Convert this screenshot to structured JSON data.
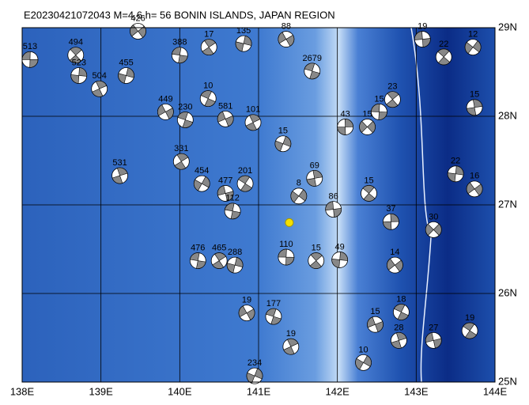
{
  "title": "E20230421072043 M=4.6 h= 56 BONIN ISLANDS, JAPAN REGION",
  "xlim": [
    138,
    144
  ],
  "ylim": [
    25,
    29
  ],
  "xticks": [
    {
      "value": 138,
      "label": "138E"
    },
    {
      "value": 139,
      "label": "139E"
    },
    {
      "value": 140,
      "label": "140E"
    },
    {
      "value": 141,
      "label": "141E"
    },
    {
      "value": 142,
      "label": "142E"
    },
    {
      "value": 143,
      "label": "143E"
    },
    {
      "value": 144,
      "label": "144E"
    }
  ],
  "yticks": [
    {
      "value": 25,
      "label": "25N"
    },
    {
      "value": 26,
      "label": "26N"
    },
    {
      "value": 27,
      "label": "27N"
    },
    {
      "value": 28,
      "label": "28N"
    },
    {
      "value": 29,
      "label": "29N"
    }
  ],
  "epicenter": {
    "lon": 141.39,
    "lat": 26.8
  },
  "events": [
    {
      "lon": 138.1,
      "lat": 28.64,
      "label": "513"
    },
    {
      "lon": 138.68,
      "lat": 28.69,
      "label": "494"
    },
    {
      "lon": 138.72,
      "lat": 28.46,
      "label": "523"
    },
    {
      "lon": 139.47,
      "lat": 28.96,
      "label": "426"
    },
    {
      "lon": 140.0,
      "lat": 28.69,
      "label": "388"
    },
    {
      "lon": 140.37,
      "lat": 28.78,
      "label": "17"
    },
    {
      "lon": 140.81,
      "lat": 28.82,
      "label": "135"
    },
    {
      "lon": 141.35,
      "lat": 28.87,
      "label": "88"
    },
    {
      "lon": 141.68,
      "lat": 28.51,
      "label": "2679"
    },
    {
      "lon": 140.93,
      "lat": 27.93,
      "label": "101"
    },
    {
      "lon": 141.31,
      "lat": 27.69,
      "label": "15"
    },
    {
      "lon": 140.58,
      "lat": 27.97,
      "label": "581"
    },
    {
      "lon": 140.36,
      "lat": 28.2,
      "label": "10"
    },
    {
      "lon": 139.24,
      "lat": 27.33,
      "label": "531"
    },
    {
      "lon": 140.28,
      "lat": 27.24,
      "label": "454"
    },
    {
      "lon": 140.58,
      "lat": 27.13,
      "label": "477"
    },
    {
      "lon": 140.83,
      "lat": 27.24,
      "label": "201"
    },
    {
      "lon": 141.71,
      "lat": 27.3,
      "label": "69"
    },
    {
      "lon": 141.51,
      "lat": 27.1,
      "label": "8"
    },
    {
      "lon": 141.95,
      "lat": 26.95,
      "label": "86"
    },
    {
      "lon": 142.4,
      "lat": 27.13,
      "label": "15"
    },
    {
      "lon": 142.68,
      "lat": 26.81,
      "label": "37"
    },
    {
      "lon": 143.22,
      "lat": 26.72,
      "label": "30"
    },
    {
      "lon": 141.35,
      "lat": 26.41,
      "label": "110"
    },
    {
      "lon": 141.73,
      "lat": 26.37,
      "label": "15"
    },
    {
      "lon": 142.03,
      "lat": 26.38,
      "label": "49"
    },
    {
      "lon": 142.73,
      "lat": 26.32,
      "label": "14"
    },
    {
      "lon": 140.23,
      "lat": 26.37,
      "label": "476"
    },
    {
      "lon": 140.5,
      "lat": 26.37,
      "label": "465"
    },
    {
      "lon": 140.7,
      "lat": 26.32,
      "label": "288"
    },
    {
      "lon": 140.85,
      "lat": 25.78,
      "label": "19"
    },
    {
      "lon": 141.19,
      "lat": 25.74,
      "label": "177"
    },
    {
      "lon": 141.41,
      "lat": 25.4,
      "label": "19"
    },
    {
      "lon": 140.95,
      "lat": 25.07,
      "label": "234"
    },
    {
      "lon": 142.48,
      "lat": 25.65,
      "label": "15"
    },
    {
      "lon": 142.81,
      "lat": 25.79,
      "label": "18"
    },
    {
      "lon": 142.78,
      "lat": 25.47,
      "label": "28"
    },
    {
      "lon": 142.33,
      "lat": 25.22,
      "label": "10"
    },
    {
      "lon": 143.22,
      "lat": 25.47,
      "label": "27"
    },
    {
      "lon": 143.68,
      "lat": 25.58,
      "label": "19"
    },
    {
      "lon": 143.74,
      "lat": 28.1,
      "label": "15"
    },
    {
      "lon": 143.72,
      "lat": 28.78,
      "label": "12"
    },
    {
      "lon": 143.08,
      "lat": 28.87,
      "label": "19"
    },
    {
      "lon": 143.35,
      "lat": 28.67,
      "label": "22"
    },
    {
      "lon": 142.1,
      "lat": 27.88,
      "label": "43"
    },
    {
      "lon": 142.38,
      "lat": 27.88,
      "label": "15"
    },
    {
      "lon": 142.53,
      "lat": 28.05,
      "label": "15"
    },
    {
      "lon": 142.7,
      "lat": 28.19,
      "label": "23"
    },
    {
      "lon": 143.5,
      "lat": 27.35,
      "label": "22"
    },
    {
      "lon": 143.74,
      "lat": 27.18,
      "label": "16"
    },
    {
      "lon": 140.67,
      "lat": 26.93,
      "label": "112"
    },
    {
      "lon": 140.02,
      "lat": 27.49,
      "label": "331"
    },
    {
      "lon": 139.32,
      "lat": 28.46,
      "label": "455"
    },
    {
      "lon": 139.82,
      "lat": 28.05,
      "label": "449"
    },
    {
      "lon": 140.07,
      "lat": 27.96,
      "label": "230"
    },
    {
      "lon": 138.98,
      "lat": 28.31,
      "label": "504"
    }
  ]
}
